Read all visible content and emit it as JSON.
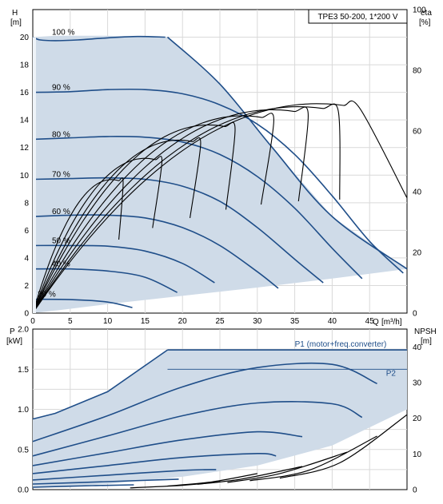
{
  "chart_data": [
    {
      "type": "line",
      "title": "TPE3 50-200, 1*200 V",
      "ylabel": "H",
      "yunit": "[m]",
      "xlabel": "Q",
      "xunit": "[m³/h]",
      "y2label": "eta",
      "y2unit": "[%]",
      "xlim": [
        0,
        50
      ],
      "ylim": [
        0,
        22
      ],
      "y2lim": [
        0,
        100
      ],
      "xticks": [
        "0",
        "5",
        "10",
        "15",
        "20",
        "25",
        "30",
        "35",
        "40",
        "45"
      ],
      "yticks": [
        "0",
        "2",
        "4",
        "6",
        "8",
        "10",
        "12",
        "14",
        "16",
        "18",
        "20"
      ],
      "y2ticks": [
        "0",
        "20",
        "40",
        "60",
        "80",
        "100"
      ],
      "grid": true,
      "colors": {
        "curve": "#1f4e89",
        "fill": "#cfdbe8",
        "eta": "#000000"
      },
      "operating_range": {
        "x": [
          0,
          0,
          3,
          10,
          17,
          18,
          25,
          32,
          40,
          50,
          50,
          40,
          30,
          20,
          10,
          4,
          0
        ],
        "y": [
          0,
          20,
          20.1,
          20.1,
          20.0,
          20.0,
          16.6,
          12.0,
          7.0,
          3.2,
          3.2,
          2.5,
          1.85,
          1.25,
          0.65,
          0.25,
          0
        ]
      },
      "series": [
        {
          "name": "100 %",
          "x": [
            0,
            1,
            3,
            6,
            10,
            14,
            17.7
          ],
          "y": [
            20.0,
            19.8,
            19.75,
            19.8,
            19.95,
            20.05,
            20.0
          ]
        },
        {
          "name": "90 %",
          "x": [
            0,
            5,
            10,
            15,
            20,
            25,
            30,
            35,
            40,
            45,
            49.5
          ],
          "y": [
            16.0,
            16.05,
            16.2,
            16.2,
            15.9,
            15.1,
            13.7,
            11.5,
            8.5,
            5.2,
            2.9
          ]
        },
        {
          "name": "80 %",
          "x": [
            0,
            5,
            10,
            15,
            20,
            25,
            30,
            35,
            40,
            44
          ],
          "y": [
            12.6,
            12.7,
            12.8,
            12.75,
            12.4,
            11.5,
            9.9,
            7.6,
            4.7,
            2.5
          ]
        },
        {
          "name": "70 %",
          "x": [
            0,
            5,
            10,
            15,
            20,
            25,
            30,
            35,
            38.8
          ],
          "y": [
            9.7,
            9.75,
            9.8,
            9.7,
            9.2,
            8.1,
            6.2,
            3.9,
            2.2
          ]
        },
        {
          "name": "60 %",
          "x": [
            0,
            5,
            10,
            15,
            20,
            25,
            30,
            32.8
          ],
          "y": [
            7.0,
            7.1,
            7.1,
            6.9,
            6.2,
            4.9,
            3.0,
            1.8
          ]
        },
        {
          "name": "50 %",
          "x": [
            0,
            5,
            10,
            15,
            20,
            24.3
          ],
          "y": [
            4.9,
            4.9,
            4.85,
            4.5,
            3.6,
            2.2
          ]
        },
        {
          "name": "40 %",
          "x": [
            0,
            5,
            10,
            15,
            19.3
          ],
          "y": [
            3.2,
            3.2,
            3.05,
            2.6,
            1.5
          ]
        },
        {
          "name": "30 %",
          "x": [
            0,
            5,
            10,
            13.3
          ],
          "y": [
            1.0,
            0.98,
            0.8,
            0.4
          ]
        }
      ],
      "eta_curves": [
        {
          "peak_q": 10.5,
          "end_q": 11.5,
          "peak": 44
        },
        {
          "peak_q": 15.0,
          "end_q": 16.0,
          "peak": 51
        },
        {
          "peak_q": 19.5,
          "end_q": 21.0,
          "peak": 57
        },
        {
          "peak_q": 23.5,
          "end_q": 25.8,
          "peak": 62
        },
        {
          "peak_q": 28.0,
          "end_q": 30.5,
          "peak": 65
        },
        {
          "peak_q": 32.0,
          "end_q": 35.5,
          "peak": 67
        },
        {
          "peak_q": 35.5,
          "end_q": 41.0,
          "peak": 68
        },
        {
          "peak_q": 38.0,
          "end_q": 50.0,
          "peak": 69
        }
      ]
    },
    {
      "type": "line",
      "ylabel": "P",
      "yunit": "[kW]",
      "y2label": "NPSH",
      "y2unit": "[m]",
      "xlim": [
        0,
        50
      ],
      "ylim": [
        0,
        2.0
      ],
      "y2lim": [
        0,
        45
      ],
      "yticks": [
        "0.0",
        "0.5",
        "1.0",
        "1.5",
        "2.0"
      ],
      "y2ticks": [
        "0",
        "10",
        "20",
        "30",
        "40"
      ],
      "grid": true,
      "colors": {
        "curve": "#1f4e89",
        "fill": "#cfdbe8",
        "npsh": "#000000"
      },
      "operating_range": {
        "x": [
          0,
          0,
          3,
          10,
          18,
          50,
          50,
          40,
          30,
          20,
          10,
          0
        ],
        "y": [
          0.02,
          0.88,
          0.95,
          1.22,
          1.74,
          1.74,
          1.0,
          0.55,
          0.3,
          0.16,
          0.07,
          0.02
        ]
      },
      "series": [
        {
          "name": "P1 (motor+freq.converter)",
          "x": [
            18,
            50
          ],
          "y": [
            1.74,
            1.74
          ]
        },
        {
          "name": "P2",
          "x": [
            18,
            50
          ],
          "y": [
            1.5,
            1.5
          ]
        },
        {
          "name": "",
          "x": [
            0,
            10,
            20,
            30,
            40,
            46
          ],
          "y": [
            0.6,
            0.92,
            1.28,
            1.52,
            1.56,
            1.32
          ]
        },
        {
          "name": "",
          "x": [
            0,
            10,
            20,
            30,
            40,
            44
          ],
          "y": [
            0.42,
            0.67,
            0.92,
            1.08,
            1.07,
            0.9
          ]
        },
        {
          "name": "",
          "x": [
            0,
            10,
            20,
            30,
            36
          ],
          "y": [
            0.3,
            0.46,
            0.62,
            0.72,
            0.66
          ]
        },
        {
          "name": "",
          "x": [
            0,
            10,
            20,
            30,
            32.5
          ],
          "y": [
            0.2,
            0.3,
            0.4,
            0.45,
            0.42
          ]
        },
        {
          "name": "",
          "x": [
            0,
            10,
            20,
            24.5
          ],
          "y": [
            0.12,
            0.18,
            0.24,
            0.25
          ]
        },
        {
          "name": "",
          "x": [
            0,
            10,
            19.5
          ],
          "y": [
            0.07,
            0.1,
            0.13
          ]
        },
        {
          "name": "",
          "x": [
            0,
            8,
            13.5
          ],
          "y": [
            0.03,
            0.05,
            0.06
          ]
        }
      ],
      "npsh_curves": [
        {
          "x": [
            13,
            20,
            25
          ],
          "y": [
            0.5,
            1.2,
            2.2
          ]
        },
        {
          "x": [
            18,
            24,
            30
          ],
          "y": [
            1.0,
            2.2,
            4.5
          ]
        },
        {
          "x": [
            22,
            28,
            36
          ],
          "y": [
            1.5,
            3.0,
            6.5
          ]
        },
        {
          "x": [
            26,
            33,
            42
          ],
          "y": [
            2.0,
            4.5,
            10.5
          ]
        },
        {
          "x": [
            29,
            37,
            46
          ],
          "y": [
            2.5,
            5.5,
            15.0
          ]
        },
        {
          "x": [
            33,
            41,
            50
          ],
          "y": [
            3.2,
            7.5,
            21.0
          ]
        }
      ]
    }
  ]
}
